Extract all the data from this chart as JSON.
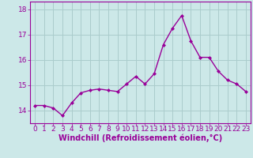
{
  "x": [
    0,
    1,
    2,
    3,
    4,
    5,
    6,
    7,
    8,
    9,
    10,
    11,
    12,
    13,
    14,
    15,
    16,
    17,
    18,
    19,
    20,
    21,
    22,
    23
  ],
  "y": [
    14.2,
    14.2,
    14.1,
    13.8,
    14.3,
    14.7,
    14.8,
    14.85,
    14.8,
    14.75,
    15.05,
    15.35,
    15.05,
    15.45,
    16.6,
    17.25,
    17.75,
    16.75,
    16.1,
    16.1,
    15.55,
    15.2,
    15.05,
    14.75
  ],
  "line_color": "#990099",
  "marker": "D",
  "marker_size": 2,
  "bg_color": "#cce8e8",
  "grid_color": "#aacccc",
  "xlabel": "Windchill (Refroidissement éolien,°C)",
  "ylabel_values": [
    14,
    15,
    16,
    17,
    18
  ],
  "ylim": [
    13.5,
    18.3
  ],
  "xlim": [
    -0.5,
    23.5
  ],
  "xlabel_fontsize": 7,
  "tick_fontsize": 6.5,
  "line_width": 1.0
}
